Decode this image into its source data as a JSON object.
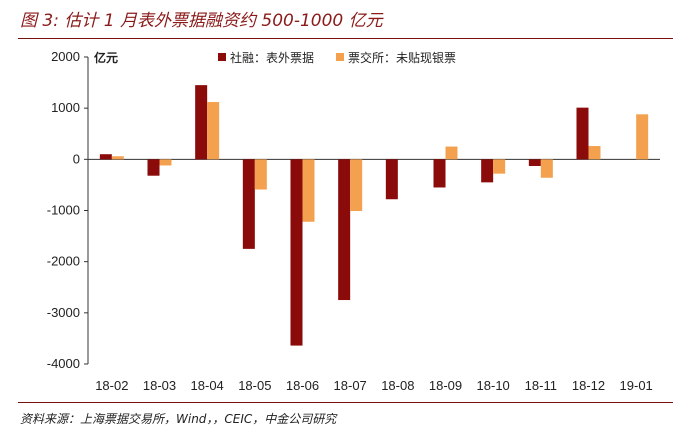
{
  "title": "图 3: 估计 1 月表外票据融资约 500-1000 亿元",
  "source": "资料来源：上海票据交易所，Wind，，CEIC，中金公司研究",
  "colors": {
    "series1": "#8b0a0a",
    "series2": "#f4a14f",
    "rule": "#7a1010"
  },
  "chart_data": {
    "type": "bar",
    "ylabel": "亿元",
    "ylim": [
      -4000,
      2000
    ],
    "yticks": [
      2000,
      1000,
      0,
      -1000,
      -2000,
      -3000,
      -4000
    ],
    "legend_position": "top-center",
    "categories": [
      "18-02",
      "18-03",
      "18-04",
      "18-05",
      "18-06",
      "18-07",
      "18-08",
      "18-09",
      "18-10",
      "18-11",
      "18-12",
      "19-01"
    ],
    "series": [
      {
        "name": "社融：表外票据",
        "color": "#8b0a0a",
        "values": [
          100,
          -320,
          1450,
          -1750,
          -3640,
          -2750,
          -780,
          -550,
          -450,
          -130,
          1010,
          null
        ]
      },
      {
        "name": "票交所：未贴现银票",
        "color": "#f4a14f",
        "values": [
          60,
          -120,
          1120,
          -590,
          -1220,
          -1010,
          null,
          250,
          -280,
          -360,
          260,
          880
        ]
      }
    ]
  }
}
